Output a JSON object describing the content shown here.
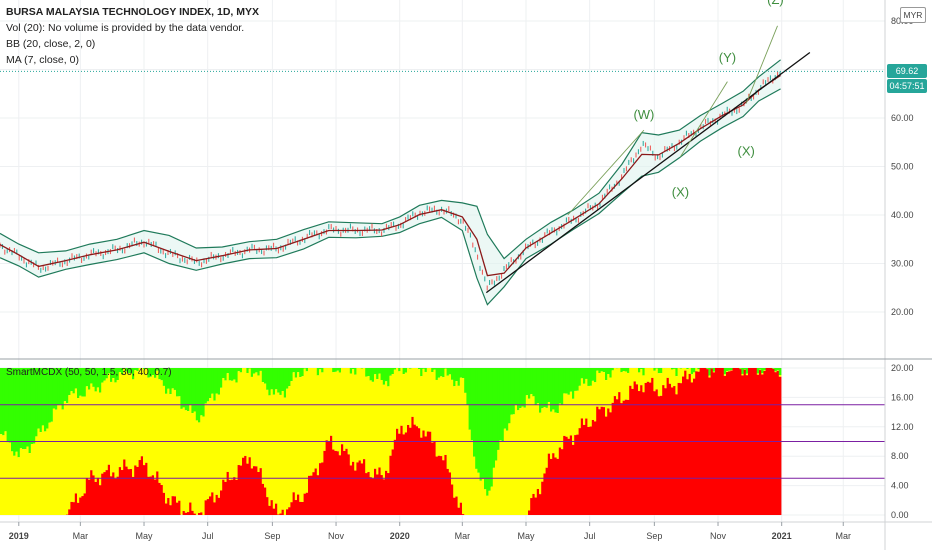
{
  "legend": {
    "title": "BURSA MALAYSIA TECHNOLOGY INDEX, 1D, MYX",
    "vol": "Vol (20): No volume is provided by the data vendor.",
    "bb": "BB (20, close, 2, 0)",
    "ma": "MA (7, close, 0)"
  },
  "currency": "MYR",
  "price_tag": "69.62",
  "countdown_tag": "04:57:51",
  "indicator_label": "SmartMCDX (50, 50, 1.5, 30, 40, 0.7)",
  "colors": {
    "price_line": "#26a69a",
    "countdown_bg": "#26a69a",
    "bb_band": "#1f7a5a",
    "ma": "#8b1a1a",
    "red": "#ff0000",
    "yellow": "#ffff00",
    "green": "#33ff00",
    "purple": "#7b1fa2"
  },
  "chart_data": [
    {
      "type": "line",
      "title": "BURSA MALAYSIA TECHNOLOGY INDEX, 1D, MYX",
      "x_ticks": [
        "2019",
        "Mar",
        "May",
        "Jul",
        "Sep",
        "Nov",
        "2020",
        "Mar",
        "May",
        "Jul",
        "Sep",
        "Nov",
        "2021",
        "Mar"
      ],
      "y_ticks": [
        "20.00",
        "30.00",
        "40.00",
        "50.00",
        "60.00",
        "80.00"
      ],
      "ylim": [
        10,
        82
      ],
      "x": [
        "2018-12-14",
        "2019-01-01",
        "2019-01-20",
        "2019-02-15",
        "2019-03-10",
        "2019-04-05",
        "2019-05-01",
        "2019-05-25",
        "2019-06-20",
        "2019-07-15",
        "2019-08-10",
        "2019-09-05",
        "2019-10-01",
        "2019-10-25",
        "2019-11-20",
        "2019-12-15",
        "2020-01-01",
        "2020-01-20",
        "2020-02-10",
        "2020-03-01",
        "2020-03-15",
        "2020-03-25",
        "2020-04-10",
        "2020-05-01",
        "2020-05-25",
        "2020-06-15",
        "2020-07-10",
        "2020-08-01",
        "2020-08-20",
        "2020-09-05",
        "2020-09-25",
        "2020-10-15",
        "2020-11-05",
        "2020-11-25",
        "2020-12-10",
        "2020-12-31"
      ],
      "series": [
        {
          "name": "Close",
          "values": [
            33.8,
            31.5,
            29.0,
            30.5,
            31.8,
            32.8,
            34.6,
            32.0,
            30.2,
            31.6,
            32.8,
            33.0,
            35.2,
            37.0,
            36.8,
            36.9,
            38.0,
            40.5,
            41.2,
            39.0,
            32.0,
            24.8,
            28.6,
            33.0,
            36.5,
            39.0,
            42.5,
            48.0,
            54.5,
            52.0,
            55.0,
            58.0,
            60.5,
            62.5,
            66.0,
            69.62
          ]
        },
        {
          "name": "BB Upper",
          "values": [
            36.2,
            34.0,
            32.2,
            32.6,
            34.0,
            35.0,
            36.8,
            35.8,
            33.2,
            33.4,
            34.5,
            35.0,
            37.0,
            38.6,
            38.4,
            38.2,
            39.6,
            42.0,
            43.0,
            42.5,
            41.8,
            36.0,
            31.0,
            35.0,
            38.5,
            41.0,
            44.5,
            50.5,
            57.0,
            56.5,
            57.5,
            60.5,
            63.0,
            65.5,
            68.5,
            72.0
          ]
        },
        {
          "name": "BB Lower",
          "values": [
            31.2,
            29.5,
            27.2,
            28.8,
            29.8,
            30.8,
            32.2,
            30.0,
            28.6,
            29.9,
            31.0,
            31.2,
            33.0,
            35.4,
            35.3,
            35.6,
            36.4,
            38.2,
            39.5,
            36.8,
            27.0,
            21.5,
            25.2,
            31.0,
            34.0,
            37.0,
            40.3,
            44.5,
            48.0,
            48.8,
            51.8,
            55.2,
            58.0,
            60.3,
            63.5,
            66.0
          ]
        },
        {
          "name": "MA",
          "values": [
            33.9,
            31.8,
            29.4,
            30.6,
            31.8,
            32.8,
            34.4,
            32.5,
            30.6,
            31.6,
            32.8,
            33.1,
            35.0,
            36.8,
            36.8,
            36.9,
            38.0,
            40.1,
            41.1,
            39.6,
            35.0,
            27.5,
            28.0,
            33.2,
            36.3,
            39.0,
            42.3,
            47.5,
            52.5,
            52.4,
            54.8,
            57.8,
            60.5,
            62.7,
            65.8,
            68.8
          ]
        }
      ],
      "annotations": [
        {
          "text": "(W)",
          "x": "2020-08-22",
          "y": 59.8
        },
        {
          "text": "(X)",
          "x": "2020-09-26",
          "y": 43.8
        },
        {
          "text": "(Y)",
          "x": "2020-11-10",
          "y": 71.5
        },
        {
          "text": "(Z)",
          "x": "2020-12-26",
          "y": 83.5
        },
        {
          "text": "(X)",
          "x": "2020-11-28",
          "y": 52.3
        }
      ],
      "trend_lines": [
        {
          "from": {
            "x": "2020-03-24",
            "y": 24.0
          },
          "to": {
            "x": "2021-01-28",
            "y": 73.5
          }
        },
        {
          "from": {
            "x": "2020-06-10",
            "y": 40.0
          },
          "to": {
            "x": "2020-08-22",
            "y": 57.5
          }
        },
        {
          "from": {
            "x": "2020-09-26",
            "y": 52.0
          },
          "to": {
            "x": "2020-11-10",
            "y": 67.5
          }
        },
        {
          "from": {
            "x": "2020-11-28",
            "y": 63.0
          },
          "to": {
            "x": "2020-12-28",
            "y": 79.0
          }
        }
      ]
    },
    {
      "type": "area",
      "title": "SmartMCDX (50, 50, 1.5, 30, 40, 0.7)",
      "y_ticks": [
        "0.00",
        "4.00",
        "8.00",
        "12.00",
        "16.00",
        "20.00"
      ],
      "ylim": [
        -0.2,
        20.3
      ],
      "hlines": [
        5,
        10,
        15
      ],
      "x": [
        "2018-12-14",
        "2019-01-01",
        "2019-01-20",
        "2019-02-15",
        "2019-03-10",
        "2019-04-05",
        "2019-05-01",
        "2019-05-25",
        "2019-06-20",
        "2019-07-15",
        "2019-08-10",
        "2019-09-05",
        "2019-10-01",
        "2019-10-25",
        "2019-11-20",
        "2019-12-15",
        "2020-01-01",
        "2020-01-20",
        "2020-02-10",
        "2020-03-01",
        "2020-03-15",
        "2020-03-25",
        "2020-04-10",
        "2020-05-01",
        "2020-05-25",
        "2020-06-15",
        "2020-07-10",
        "2020-08-01",
        "2020-08-20",
        "2020-09-05",
        "2020-09-25",
        "2020-10-15",
        "2020-11-05",
        "2020-11-25",
        "2020-12-10",
        "2020-12-31"
      ],
      "series": [
        {
          "name": "Red",
          "values": [
            0,
            0,
            0,
            0,
            5,
            6,
            7,
            2,
            0,
            4,
            8,
            0,
            3,
            10,
            7,
            5,
            12,
            12,
            8,
            0,
            0,
            0,
            0,
            0,
            8,
            11,
            14,
            16,
            18,
            17,
            18,
            20,
            20,
            20,
            20,
            20
          ]
        },
        {
          "name": "Yellow",
          "values": [
            11,
            8,
            11,
            16,
            17,
            19,
            20,
            17,
            13,
            18,
            20,
            16,
            20,
            20,
            20,
            18,
            20,
            20,
            19,
            18,
            5,
            3,
            12,
            16,
            14,
            17,
            19,
            20,
            20,
            20,
            20,
            20,
            20,
            20,
            20,
            20
          ]
        },
        {
          "name": "Green",
          "values": [
            20,
            20,
            20,
            20,
            20,
            20,
            20,
            20,
            20,
            20,
            20,
            20,
            20,
            20,
            20,
            20,
            20,
            20,
            20,
            20,
            20,
            20,
            20,
            20,
            20,
            20,
            20,
            20,
            20,
            20,
            20,
            20,
            20,
            20,
            20,
            20
          ]
        }
      ]
    }
  ]
}
